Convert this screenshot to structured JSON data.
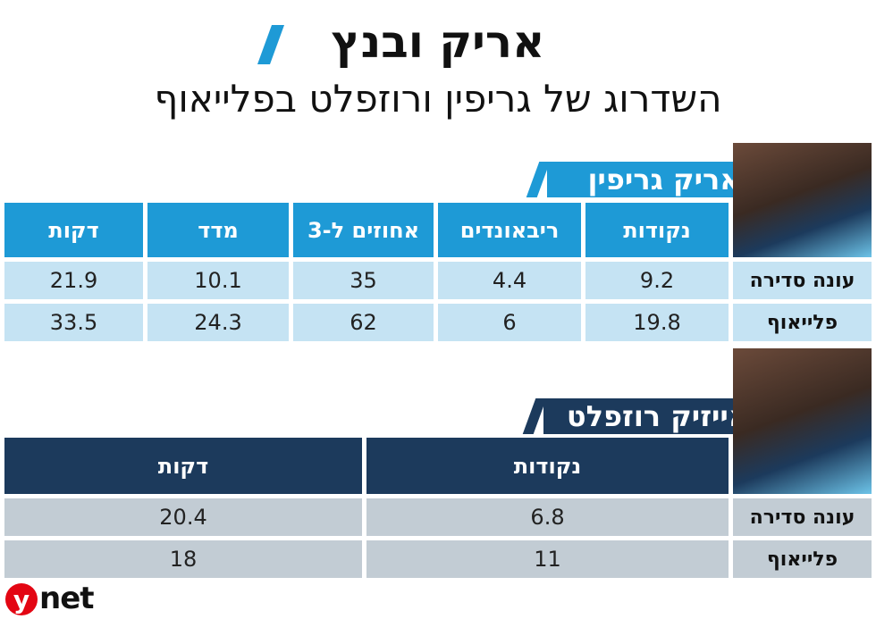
{
  "header": {
    "title": "אריק ובנץ",
    "subtitle": "השדרוג של גריפין ורוזפלט בפלייאוף"
  },
  "colors": {
    "blue": "#1e9ad6",
    "light_blue": "#c5e3f3",
    "navy": "#1c3a5c",
    "gray": "#c2ccd4",
    "ynet_red": "#e30613"
  },
  "chart_data": [
    {
      "type": "table",
      "title": "אריק גריפין",
      "columns": [
        "נקודות",
        "ריבאונדים",
        "אחוזים ל-3",
        "מדד",
        "דקות"
      ],
      "rows": [
        {
          "label": "עונה סדירה",
          "values": [
            "9.2",
            "4.4",
            "35",
            "10.1",
            "21.9"
          ]
        },
        {
          "label": "פלייאוף",
          "values": [
            "19.8",
            "6",
            "62",
            "24.3",
            "33.5"
          ]
        }
      ]
    },
    {
      "type": "table",
      "title": "אייזיק רוזפלט",
      "columns": [
        "נקודות",
        "דקות"
      ],
      "rows": [
        {
          "label": "עונה סדירה",
          "values": [
            "6.8",
            "20.4"
          ]
        },
        {
          "label": "פלייאוף",
          "values": [
            "11",
            "18"
          ]
        }
      ]
    }
  ],
  "logo": {
    "y": "y",
    "net": "net"
  }
}
